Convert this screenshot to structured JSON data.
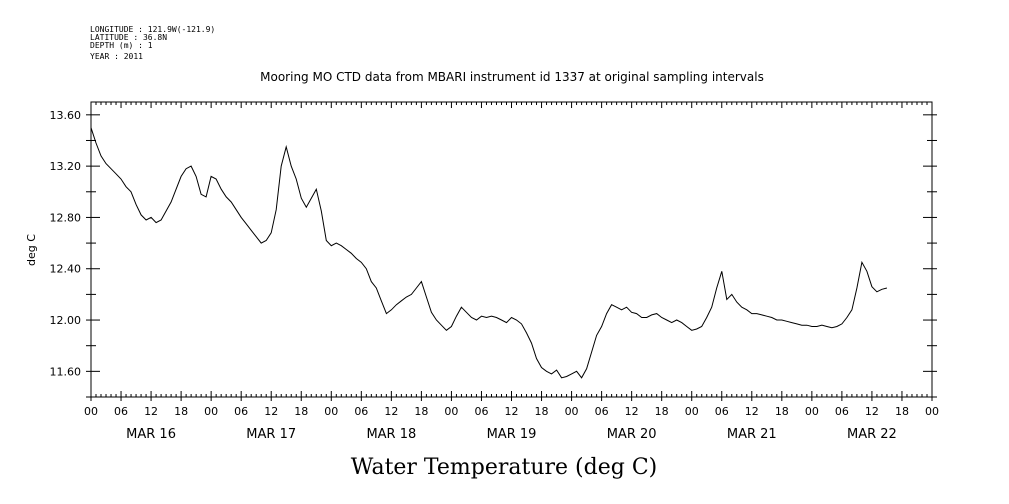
{
  "header": {
    "lines": [
      "LONGITUDE : 121.9W(-121.9)",
      "LATITUDE : 36.8N",
      "DEPTH (m) : 1",
      "YEAR : 2011"
    ]
  },
  "chart_data": {
    "type": "line",
    "title": "Mooring MO CTD data from MBARI instrument id 1337 at original sampling intervals",
    "xlabel": "Water Temperature (deg C)",
    "ylabel": "deg C",
    "ylim": [
      11.4,
      13.7
    ],
    "xlim_hours": [
      0,
      168
    ],
    "y_ticks": [
      "11.60",
      "12.00",
      "12.40",
      "12.80",
      "13.20",
      "13.60"
    ],
    "hour_tick_labels": [
      "00",
      "06",
      "12",
      "18",
      "00",
      "06",
      "12",
      "18",
      "00",
      "06",
      "12",
      "18",
      "00",
      "06",
      "12",
      "18",
      "00",
      "06",
      "12",
      "18",
      "00",
      "06",
      "12",
      "18",
      "00",
      "06",
      "12",
      "18",
      "00"
    ],
    "day_labels": [
      "MAR 16",
      "MAR 17",
      "MAR 18",
      "MAR 19",
      "MAR 20",
      "MAR 21",
      "MAR 22"
    ],
    "grid": false,
    "series": [
      {
        "values": [
          [
            0,
            13.5
          ],
          [
            1,
            13.38
          ],
          [
            2,
            13.28
          ],
          [
            3,
            13.22
          ],
          [
            4,
            13.18
          ],
          [
            5,
            13.14
          ],
          [
            6,
            13.1
          ],
          [
            7,
            13.04
          ],
          [
            8,
            13.0
          ],
          [
            9,
            12.9
          ],
          [
            10,
            12.82
          ],
          [
            11,
            12.78
          ],
          [
            12,
            12.8
          ],
          [
            13,
            12.76
          ],
          [
            14,
            12.78
          ],
          [
            15,
            12.85
          ],
          [
            16,
            12.92
          ],
          [
            17,
            13.02
          ],
          [
            18,
            13.12
          ],
          [
            19,
            13.18
          ],
          [
            20,
            13.2
          ],
          [
            21,
            13.12
          ],
          [
            22,
            12.98
          ],
          [
            23,
            12.96
          ],
          [
            24,
            13.12
          ],
          [
            25,
            13.1
          ],
          [
            26,
            13.02
          ],
          [
            27,
            12.96
          ],
          [
            28,
            12.92
          ],
          [
            29,
            12.86
          ],
          [
            30,
            12.8
          ],
          [
            31,
            12.75
          ],
          [
            32,
            12.7
          ],
          [
            33,
            12.65
          ],
          [
            34,
            12.6
          ],
          [
            35,
            12.62
          ],
          [
            36,
            12.68
          ],
          [
            37,
            12.86
          ],
          [
            38,
            13.2
          ],
          [
            39,
            13.35
          ],
          [
            40,
            13.2
          ],
          [
            41,
            13.1
          ],
          [
            42,
            12.95
          ],
          [
            43,
            12.88
          ],
          [
            44,
            12.95
          ],
          [
            45,
            13.02
          ],
          [
            46,
            12.85
          ],
          [
            47,
            12.62
          ],
          [
            48,
            12.58
          ],
          [
            49,
            12.6
          ],
          [
            50,
            12.58
          ],
          [
            51,
            12.55
          ],
          [
            52,
            12.52
          ],
          [
            53,
            12.48
          ],
          [
            54,
            12.45
          ],
          [
            55,
            12.4
          ],
          [
            56,
            12.3
          ],
          [
            57,
            12.25
          ],
          [
            58,
            12.15
          ],
          [
            59,
            12.05
          ],
          [
            60,
            12.08
          ],
          [
            61,
            12.12
          ],
          [
            62,
            12.15
          ],
          [
            63,
            12.18
          ],
          [
            64,
            12.2
          ],
          [
            65,
            12.25
          ],
          [
            66,
            12.3
          ],
          [
            67,
            12.18
          ],
          [
            68,
            12.06
          ],
          [
            69,
            12.0
          ],
          [
            70,
            11.96
          ],
          [
            71,
            11.92
          ],
          [
            72,
            11.95
          ],
          [
            73,
            12.03
          ],
          [
            74,
            12.1
          ],
          [
            75,
            12.06
          ],
          [
            76,
            12.02
          ],
          [
            77,
            12.0
          ],
          [
            78,
            12.03
          ],
          [
            79,
            12.02
          ],
          [
            80,
            12.03
          ],
          [
            81,
            12.02
          ],
          [
            82,
            12.0
          ],
          [
            83,
            11.98
          ],
          [
            84,
            12.02
          ],
          [
            85,
            12.0
          ],
          [
            86,
            11.97
          ],
          [
            87,
            11.9
          ],
          [
            88,
            11.82
          ],
          [
            89,
            11.7
          ],
          [
            90,
            11.63
          ],
          [
            91,
            11.6
          ],
          [
            92,
            11.58
          ],
          [
            93,
            11.61
          ],
          [
            94,
            11.55
          ],
          [
            95,
            11.56
          ],
          [
            96,
            11.58
          ],
          [
            97,
            11.6
          ],
          [
            98,
            11.55
          ],
          [
            99,
            11.62
          ],
          [
            100,
            11.75
          ],
          [
            101,
            11.88
          ],
          [
            102,
            11.95
          ],
          [
            103,
            12.05
          ],
          [
            104,
            12.12
          ],
          [
            105,
            12.1
          ],
          [
            106,
            12.08
          ],
          [
            107,
            12.1
          ],
          [
            108,
            12.06
          ],
          [
            109,
            12.05
          ],
          [
            110,
            12.02
          ],
          [
            111,
            12.02
          ],
          [
            112,
            12.04
          ],
          [
            113,
            12.05
          ],
          [
            114,
            12.02
          ],
          [
            115,
            12.0
          ],
          [
            116,
            11.98
          ],
          [
            117,
            12.0
          ],
          [
            118,
            11.98
          ],
          [
            119,
            11.95
          ],
          [
            120,
            11.92
          ],
          [
            121,
            11.93
          ],
          [
            122,
            11.95
          ],
          [
            123,
            12.02
          ],
          [
            124,
            12.1
          ],
          [
            125,
            12.25
          ],
          [
            126,
            12.38
          ],
          [
            127,
            12.16
          ],
          [
            128,
            12.2
          ],
          [
            129,
            12.14
          ],
          [
            130,
            12.1
          ],
          [
            131,
            12.08
          ],
          [
            132,
            12.05
          ],
          [
            133,
            12.05
          ],
          [
            134,
            12.04
          ],
          [
            135,
            12.03
          ],
          [
            136,
            12.02
          ],
          [
            137,
            12.0
          ],
          [
            138,
            12.0
          ],
          [
            139,
            11.99
          ],
          [
            140,
            11.98
          ],
          [
            141,
            11.97
          ],
          [
            142,
            11.96
          ],
          [
            143,
            11.96
          ],
          [
            144,
            11.95
          ],
          [
            145,
            11.95
          ],
          [
            146,
            11.96
          ],
          [
            147,
            11.95
          ],
          [
            148,
            11.94
          ],
          [
            149,
            11.95
          ],
          [
            150,
            11.97
          ],
          [
            151,
            12.02
          ],
          [
            152,
            12.08
          ],
          [
            153,
            12.25
          ],
          [
            154,
            12.45
          ],
          [
            155,
            12.38
          ],
          [
            156,
            12.26
          ],
          [
            157,
            12.22
          ],
          [
            158,
            12.24
          ],
          [
            159,
            12.25
          ]
        ]
      }
    ]
  }
}
